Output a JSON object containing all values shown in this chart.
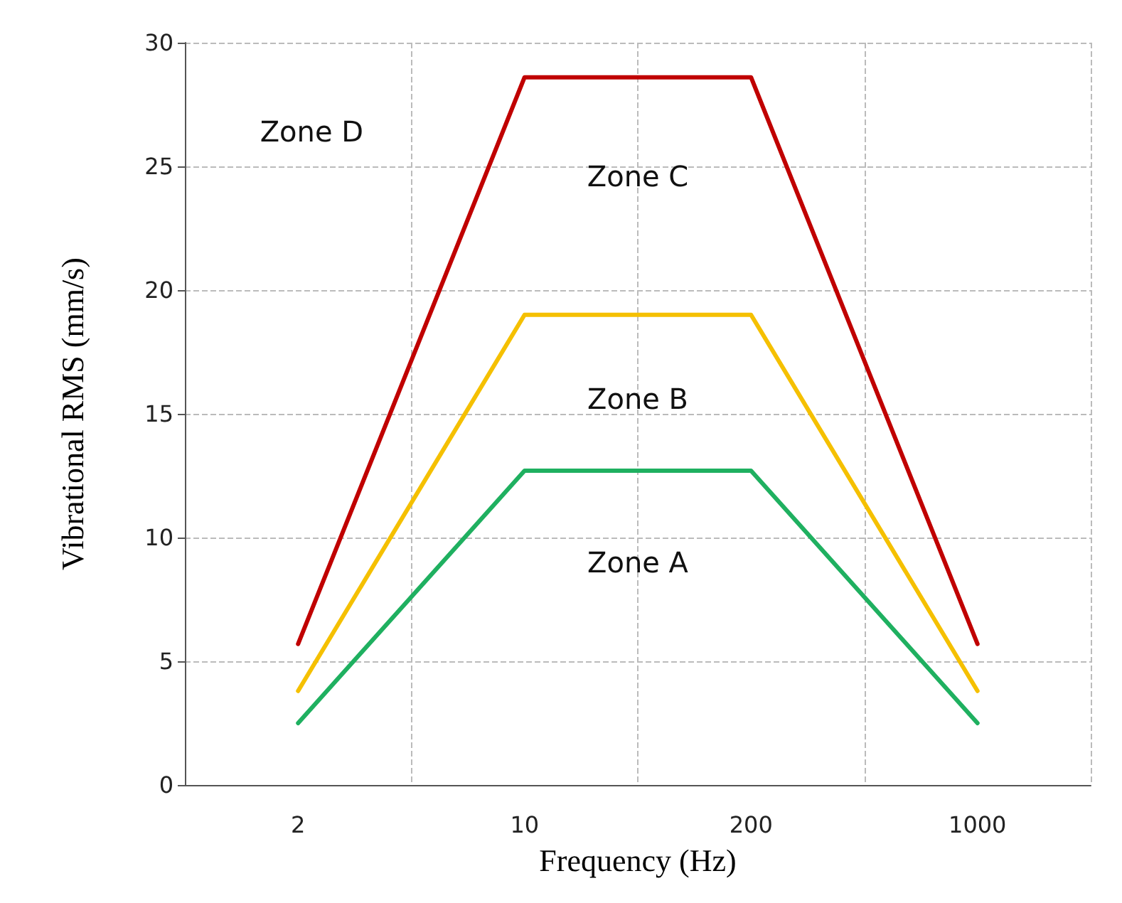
{
  "chart_data": {
    "type": "line",
    "xlabel": "Frequency (Hz)",
    "ylabel": "Vibrational RMS (mm/s)",
    "categories": [
      "2",
      "10",
      "200",
      "1000"
    ],
    "series": [
      {
        "color": "#c00000",
        "values": [
          5.7,
          28.6,
          28.6,
          5.7
        ]
      },
      {
        "color": "#f5c000",
        "values": [
          3.8,
          19,
          19,
          3.8
        ]
      },
      {
        "color": "#1fb060",
        "values": [
          2.5,
          12.7,
          12.7,
          2.5
        ]
      }
    ],
    "ylim": [
      0,
      30
    ],
    "yticks": [
      0,
      5,
      10,
      15,
      20,
      25,
      30
    ],
    "grid": true,
    "marker": "none",
    "line_style": "solid",
    "annotations": [
      "Zone D",
      "Zone C",
      "Zone B",
      "Zone A"
    ]
  }
}
